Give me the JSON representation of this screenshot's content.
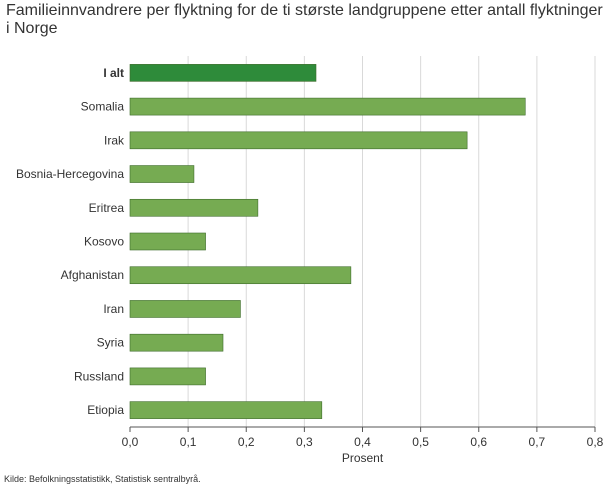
{
  "chart_data": {
    "type": "bar",
    "orientation": "horizontal",
    "title": "Familieinnvandrere per flyktning for de ti største landgruppene etter antall flyktninger i Norge",
    "xlabel": "Prosent",
    "ylabel": "",
    "xlim": [
      0,
      0.8
    ],
    "xticks": [
      0,
      0.1,
      0.2,
      0.3,
      0.4,
      0.5,
      0.6,
      0.7,
      0.8
    ],
    "xtick_labels": [
      "0,0",
      "0,1",
      "0,2",
      "0,3",
      "0,4",
      "0,5",
      "0,6",
      "0,7",
      "0,8"
    ],
    "grid": true,
    "categories": [
      "I alt",
      "Somalia",
      "Irak",
      "Bosnia-Hercegovina",
      "Eritrea",
      "Kosovo",
      "Afghanistan",
      "Iran",
      "Syria",
      "Russland",
      "Etiopia"
    ],
    "values": [
      0.32,
      0.68,
      0.58,
      0.11,
      0.22,
      0.13,
      0.38,
      0.19,
      0.16,
      0.13,
      0.33
    ],
    "highlight_index": 0,
    "colors": {
      "bar": "#76ab52",
      "bar_highlight": "#2e8b3a",
      "bar_stroke": "#3d6b2a",
      "grid": "#d9d9d9",
      "axis": "#555555"
    }
  },
  "source": "Kilde: Befolkningsstatistikk, Statistisk sentralbyrå."
}
